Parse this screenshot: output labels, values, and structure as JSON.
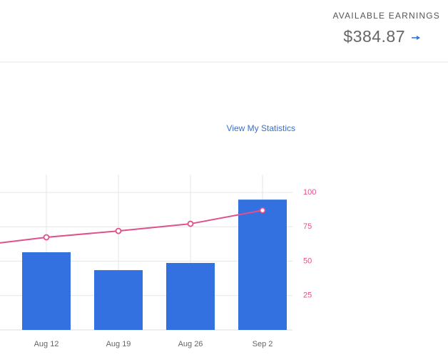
{
  "header": {
    "label": "AVAILABLE EARNINGS",
    "amount": "$384.87"
  },
  "link": "View My Statistics",
  "chart_data": {
    "type": "bar-line",
    "categories": [
      null,
      "Aug 12",
      "Aug 19",
      "Aug 26",
      "Sep 2"
    ],
    "series": [
      {
        "type": "bar",
        "color": "#3370e0",
        "values": [
          null,
          56.5,
          43.5,
          48.7,
          94.8
        ]
      },
      {
        "type": "line",
        "color": "#e0508a",
        "values": [
          61,
          67.4,
          72,
          77.2,
          87
        ]
      }
    ],
    "ylim": [
      0,
      113
    ],
    "yticks": [
      25,
      50,
      75,
      100
    ],
    "grid": true
  }
}
